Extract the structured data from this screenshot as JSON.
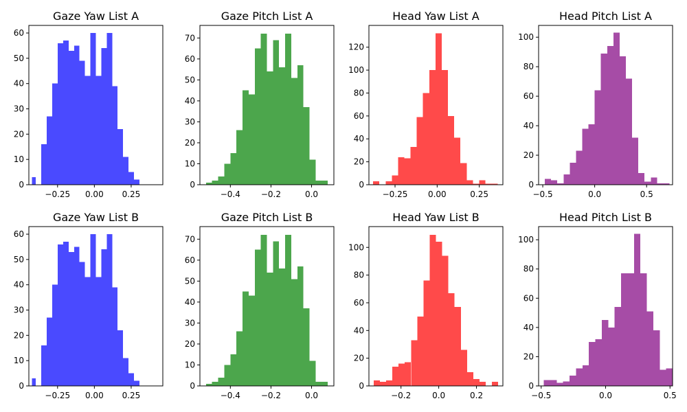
{
  "chart_data": [
    {
      "type": "bar",
      "title": "Gaze Yaw List A",
      "xlabel": "",
      "ylabel": "",
      "color": "#4a4aff",
      "xlim": [
        -0.445,
        0.465
      ],
      "ylim": [
        0,
        63
      ],
      "x_ticks": [
        {
          "v": -0.25,
          "label": "−0.25"
        },
        {
          "v": 0,
          "label": "0.00"
        },
        {
          "v": 0.25,
          "label": "0.25"
        }
      ],
      "y_ticks": [
        0,
        10,
        20,
        30,
        40,
        50,
        60
      ],
      "bins": [
        [
          -0.425,
          -0.398,
          3
        ],
        [
          -0.398,
          -0.36,
          0
        ],
        [
          -0.36,
          -0.323,
          16
        ],
        [
          -0.323,
          -0.286,
          27
        ],
        [
          -0.286,
          -0.249,
          40
        ],
        [
          -0.249,
          -0.212,
          56
        ],
        [
          -0.212,
          -0.175,
          57
        ],
        [
          -0.175,
          -0.138,
          53
        ],
        [
          -0.138,
          -0.101,
          55
        ],
        [
          -0.101,
          -0.064,
          49
        ],
        [
          -0.064,
          -0.027,
          43
        ],
        [
          -0.027,
          0.01,
          60
        ],
        [
          0.01,
          0.047,
          43
        ],
        [
          0.047,
          0.084,
          54
        ],
        [
          0.084,
          0.121,
          60
        ],
        [
          0.121,
          0.158,
          39
        ],
        [
          0.158,
          0.195,
          22
        ],
        [
          0.195,
          0.232,
          11
        ],
        [
          0.232,
          0.269,
          5
        ],
        [
          0.269,
          0.306,
          2
        ]
      ]
    },
    {
      "type": "bar",
      "title": "Gaze Pitch List A",
      "xlabel": "",
      "ylabel": "",
      "color": "#4ca64c",
      "xlim": [
        -0.55,
        0.11
      ],
      "ylim": [
        0,
        76
      ],
      "x_ticks": [
        {
          "v": -0.4,
          "label": "−0.4"
        },
        {
          "v": -0.2,
          "label": "−0.2"
        },
        {
          "v": 0,
          "label": "0.0"
        }
      ],
      "y_ticks": [
        0,
        10,
        20,
        30,
        40,
        50,
        60,
        70
      ],
      "bins": [
        [
          -0.52,
          -0.49,
          1
        ],
        [
          -0.49,
          -0.46,
          2
        ],
        [
          -0.46,
          -0.43,
          4
        ],
        [
          -0.43,
          -0.4,
          10
        ],
        [
          -0.4,
          -0.37,
          15
        ],
        [
          -0.37,
          -0.34,
          26
        ],
        [
          -0.34,
          -0.31,
          45
        ],
        [
          -0.31,
          -0.28,
          43
        ],
        [
          -0.28,
          -0.25,
          65
        ],
        [
          -0.25,
          -0.22,
          72
        ],
        [
          -0.22,
          -0.19,
          54
        ],
        [
          -0.19,
          -0.16,
          69
        ],
        [
          -0.16,
          -0.13,
          56
        ],
        [
          -0.13,
          -0.1,
          72
        ],
        [
          -0.1,
          -0.07,
          51
        ],
        [
          -0.07,
          -0.04,
          57
        ],
        [
          -0.04,
          -0.01,
          37
        ],
        [
          -0.01,
          0.02,
          12
        ],
        [
          0.02,
          0.05,
          2
        ],
        [
          0.05,
          0.08,
          2
        ]
      ]
    },
    {
      "type": "bar",
      "title": "Head Yaw List A",
      "xlabel": "",
      "ylabel": "",
      "color": "#ff4a4a",
      "xlim": [
        -0.405,
        0.39
      ],
      "ylim": [
        0,
        139
      ],
      "x_ticks": [
        {
          "v": -0.25,
          "label": "−0.25"
        },
        {
          "v": 0,
          "label": "0.00"
        },
        {
          "v": 0.25,
          "label": "0.25"
        }
      ],
      "y_ticks": [
        0,
        20,
        40,
        60,
        80,
        100,
        120
      ],
      "bins": [
        [
          -0.38,
          -0.343,
          3
        ],
        [
          -0.343,
          -0.306,
          0
        ],
        [
          -0.306,
          -0.269,
          3
        ],
        [
          -0.269,
          -0.232,
          8
        ],
        [
          -0.232,
          -0.195,
          24
        ],
        [
          -0.195,
          -0.158,
          23
        ],
        [
          -0.158,
          -0.121,
          33
        ],
        [
          -0.121,
          -0.084,
          59
        ],
        [
          -0.084,
          -0.047,
          80
        ],
        [
          -0.047,
          -0.01,
          100
        ],
        [
          -0.01,
          0.027,
          132
        ],
        [
          0.027,
          0.064,
          100
        ],
        [
          0.064,
          0.101,
          60
        ],
        [
          0.101,
          0.138,
          41
        ],
        [
          0.138,
          0.175,
          19
        ],
        [
          0.175,
          0.212,
          4
        ],
        [
          0.212,
          0.249,
          1
        ],
        [
          0.249,
          0.286,
          4
        ],
        [
          0.286,
          0.323,
          1
        ],
        [
          0.323,
          0.36,
          1
        ]
      ]
    },
    {
      "type": "bar",
      "title": "Head Pitch List A",
      "xlabel": "",
      "ylabel": "",
      "color": "#a64ca6",
      "xlim": [
        -0.54,
        0.75
      ],
      "ylim": [
        0,
        108
      ],
      "x_ticks": [
        {
          "v": -0.5,
          "label": "−0.5"
        },
        {
          "v": 0,
          "label": "0.0"
        },
        {
          "v": 0.5,
          "label": "0.5"
        }
      ],
      "y_ticks": [
        0,
        20,
        40,
        60,
        80,
        100
      ],
      "bins": [
        [
          -0.48,
          -0.42,
          4
        ],
        [
          -0.42,
          -0.36,
          3
        ],
        [
          -0.36,
          -0.3,
          1
        ],
        [
          -0.3,
          -0.24,
          7
        ],
        [
          -0.24,
          -0.18,
          15
        ],
        [
          -0.18,
          -0.12,
          23
        ],
        [
          -0.12,
          -0.06,
          38
        ],
        [
          -0.06,
          0.0,
          41
        ],
        [
          0.0,
          0.06,
          64
        ],
        [
          0.06,
          0.12,
          89
        ],
        [
          0.12,
          0.18,
          94
        ],
        [
          0.18,
          0.24,
          103
        ],
        [
          0.24,
          0.3,
          87
        ],
        [
          0.3,
          0.36,
          72
        ],
        [
          0.36,
          0.42,
          32
        ],
        [
          0.42,
          0.48,
          8
        ],
        [
          0.48,
          0.54,
          2
        ],
        [
          0.54,
          0.6,
          5
        ],
        [
          0.6,
          0.66,
          1
        ],
        [
          0.66,
          0.72,
          1
        ]
      ]
    },
    {
      "type": "bar",
      "title": "Gaze Yaw List B",
      "xlabel": "",
      "ylabel": "",
      "color": "#4a4aff",
      "xlim": [
        -0.445,
        0.465
      ],
      "ylim": [
        0,
        63
      ],
      "x_ticks": [
        {
          "v": -0.25,
          "label": "−0.25"
        },
        {
          "v": 0,
          "label": "0.00"
        },
        {
          "v": 0.25,
          "label": "0.25"
        }
      ],
      "y_ticks": [
        0,
        10,
        20,
        30,
        40,
        50,
        60
      ],
      "bins": [
        [
          -0.425,
          -0.398,
          3
        ],
        [
          -0.398,
          -0.36,
          0
        ],
        [
          -0.36,
          -0.323,
          16
        ],
        [
          -0.323,
          -0.286,
          27
        ],
        [
          -0.286,
          -0.249,
          40
        ],
        [
          -0.249,
          -0.212,
          56
        ],
        [
          -0.212,
          -0.175,
          57
        ],
        [
          -0.175,
          -0.138,
          53
        ],
        [
          -0.138,
          -0.101,
          55
        ],
        [
          -0.101,
          -0.064,
          49
        ],
        [
          -0.064,
          -0.027,
          43
        ],
        [
          -0.027,
          0.01,
          60
        ],
        [
          0.01,
          0.047,
          43
        ],
        [
          0.047,
          0.084,
          54
        ],
        [
          0.084,
          0.121,
          60
        ],
        [
          0.121,
          0.158,
          39
        ],
        [
          0.158,
          0.195,
          22
        ],
        [
          0.195,
          0.232,
          11
        ],
        [
          0.232,
          0.269,
          5
        ],
        [
          0.269,
          0.306,
          2
        ]
      ]
    },
    {
      "type": "bar",
      "title": "Gaze Pitch List B",
      "xlabel": "",
      "ylabel": "",
      "color": "#4ca64c",
      "xlim": [
        -0.55,
        0.11
      ],
      "ylim": [
        0,
        76
      ],
      "x_ticks": [
        {
          "v": -0.4,
          "label": "−0.4"
        },
        {
          "v": -0.2,
          "label": "−0.2"
        },
        {
          "v": 0,
          "label": "0.0"
        }
      ],
      "y_ticks": [
        0,
        10,
        20,
        30,
        40,
        50,
        60,
        70
      ],
      "bins": [
        [
          -0.52,
          -0.49,
          1
        ],
        [
          -0.49,
          -0.46,
          2
        ],
        [
          -0.46,
          -0.43,
          4
        ],
        [
          -0.43,
          -0.4,
          10
        ],
        [
          -0.4,
          -0.37,
          15
        ],
        [
          -0.37,
          -0.34,
          26
        ],
        [
          -0.34,
          -0.31,
          45
        ],
        [
          -0.31,
          -0.28,
          43
        ],
        [
          -0.28,
          -0.25,
          65
        ],
        [
          -0.25,
          -0.22,
          72
        ],
        [
          -0.22,
          -0.19,
          54
        ],
        [
          -0.19,
          -0.16,
          69
        ],
        [
          -0.16,
          -0.13,
          56
        ],
        [
          -0.13,
          -0.1,
          72
        ],
        [
          -0.1,
          -0.07,
          51
        ],
        [
          -0.07,
          -0.04,
          57
        ],
        [
          -0.04,
          -0.01,
          37
        ],
        [
          -0.01,
          0.02,
          12
        ],
        [
          0.02,
          0.05,
          2
        ],
        [
          0.05,
          0.08,
          2
        ]
      ]
    },
    {
      "type": "bar",
      "title": "Head Yaw List B",
      "xlabel": "",
      "ylabel": "",
      "color": "#ff4a4a",
      "xlim": [
        -0.37,
        0.34
      ],
      "ylim": [
        0,
        115
      ],
      "x_ticks": [
        {
          "v": -0.2,
          "label": "−0.2"
        },
        {
          "v": 0,
          "label": "0.0"
        },
        {
          "v": 0.2,
          "label": "0.2"
        }
      ],
      "y_ticks": [
        0,
        20,
        40,
        60,
        80,
        100
      ],
      "bins": [
        [
          -0.345,
          -0.312,
          4
        ],
        [
          -0.312,
          -0.279,
          3
        ],
        [
          -0.279,
          -0.246,
          4
        ],
        [
          -0.246,
          -0.213,
          14
        ],
        [
          -0.213,
          -0.18,
          16
        ],
        [
          -0.18,
          -0.147,
          17
        ],
        [
          -0.147,
          -0.114,
          33
        ],
        [
          -0.114,
          -0.081,
          50
        ],
        [
          -0.081,
          -0.048,
          76
        ],
        [
          -0.048,
          -0.015,
          109
        ],
        [
          -0.015,
          0.018,
          104
        ],
        [
          0.018,
          0.051,
          94
        ],
        [
          0.051,
          0.084,
          67
        ],
        [
          0.084,
          0.117,
          57
        ],
        [
          0.117,
          0.15,
          26
        ],
        [
          0.15,
          0.183,
          10
        ],
        [
          0.183,
          0.216,
          5
        ],
        [
          0.216,
          0.249,
          3
        ],
        [
          0.249,
          0.282,
          0
        ],
        [
          0.282,
          0.315,
          3
        ]
      ]
    },
    {
      "type": "bar",
      "title": "Head Pitch List B",
      "xlabel": "",
      "ylabel": "",
      "color": "#a64ca6",
      "xlim": [
        -0.52,
        0.52
      ],
      "ylim": [
        0,
        109
      ],
      "x_ticks": [
        {
          "v": -0.5,
          "label": "−0.5"
        },
        {
          "v": 0,
          "label": "0.0"
        },
        {
          "v": 0.5,
          "label": "0.5"
        }
      ],
      "y_ticks": [
        0,
        20,
        40,
        60,
        80,
        100
      ],
      "bins": [
        [
          -0.48,
          -0.43,
          4
        ],
        [
          -0.43,
          -0.38,
          4
        ],
        [
          -0.38,
          -0.33,
          2
        ],
        [
          -0.33,
          -0.28,
          3
        ],
        [
          -0.28,
          -0.23,
          7
        ],
        [
          -0.23,
          -0.18,
          12
        ],
        [
          -0.18,
          -0.13,
          14
        ],
        [
          -0.13,
          -0.08,
          30
        ],
        [
          -0.08,
          -0.03,
          32
        ],
        [
          -0.03,
          0.02,
          45
        ],
        [
          0.02,
          0.07,
          40
        ],
        [
          0.07,
          0.12,
          54
        ],
        [
          0.12,
          0.17,
          77
        ],
        [
          0.17,
          0.22,
          77
        ],
        [
          0.22,
          0.27,
          104
        ],
        [
          0.27,
          0.32,
          77
        ],
        [
          0.32,
          0.37,
          51
        ],
        [
          0.37,
          0.42,
          38
        ],
        [
          0.42,
          0.47,
          11
        ],
        [
          0.47,
          0.52,
          12
        ]
      ]
    }
  ]
}
